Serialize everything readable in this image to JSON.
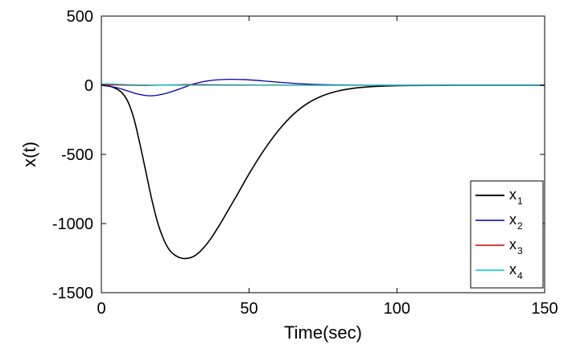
{
  "chart_data": {
    "type": "line",
    "title": "",
    "xlabel": "Time(sec)",
    "ylabel": "x(t)",
    "xlim": [
      0,
      150
    ],
    "ylim": [
      -1500,
      500
    ],
    "xticks": [
      0,
      50,
      100,
      150
    ],
    "yticks": [
      -1500,
      -1000,
      -500,
      0,
      500
    ],
    "xtick_labels": [
      "0",
      "50",
      "100",
      "150"
    ],
    "ytick_labels": [
      "-1500",
      "-1000",
      "-500",
      "0",
      "500"
    ],
    "grid": false,
    "legend_position": "bottom-right",
    "series": [
      {
        "name": "x",
        "subscript": "1",
        "color": "#000000",
        "x": [
          0,
          3,
          5,
          7,
          9,
          11,
          13,
          15,
          17,
          19,
          21,
          23,
          25,
          27,
          29,
          31,
          33,
          35,
          37,
          40,
          43,
          46,
          50,
          55,
          60,
          65,
          70,
          75,
          80,
          85,
          90,
          95,
          100,
          110,
          120,
          130,
          140,
          150
        ],
        "y": [
          0,
          -8,
          -25,
          -55,
          -120,
          -240,
          -420,
          -620,
          -820,
          -990,
          -1110,
          -1190,
          -1230,
          -1250,
          -1252,
          -1240,
          -1210,
          -1165,
          -1110,
          -1010,
          -900,
          -790,
          -640,
          -470,
          -325,
          -210,
          -128,
          -75,
          -42,
          -23,
          -12,
          -6,
          -3,
          -1,
          0,
          0,
          0,
          0
        ]
      },
      {
        "name": "x",
        "subscript": "2",
        "color": "#0000aa",
        "x": [
          0,
          3,
          6,
          9,
          12,
          15,
          17,
          19,
          22,
          25,
          28,
          31,
          34,
          37,
          40,
          44,
          48,
          52,
          56,
          60,
          65,
          70,
          75,
          80,
          90,
          100,
          120,
          150
        ],
        "y": [
          0,
          -8,
          -22,
          -42,
          -62,
          -74,
          -76,
          -72,
          -58,
          -38,
          -15,
          8,
          24,
          34,
          40,
          43,
          41,
          36,
          29,
          22,
          14,
          8,
          4,
          2,
          0,
          0,
          0,
          0
        ]
      },
      {
        "name": "x",
        "subscript": "3",
        "color": "#cc0000",
        "x": [
          0,
          5,
          10,
          15,
          20,
          25,
          30,
          35,
          40,
          50,
          60,
          80,
          100,
          150
        ],
        "y": [
          3,
          2,
          0,
          -1,
          1,
          3,
          5,
          4,
          3,
          2,
          1,
          0,
          0,
          0
        ]
      },
      {
        "name": "x",
        "subscript": "4",
        "color": "#00cccc",
        "x": [
          0,
          5,
          10,
          15,
          20,
          30,
          40,
          60,
          100,
          150
        ],
        "y": [
          12,
          8,
          4,
          2,
          1,
          0,
          0,
          0,
          0,
          0
        ]
      }
    ]
  }
}
